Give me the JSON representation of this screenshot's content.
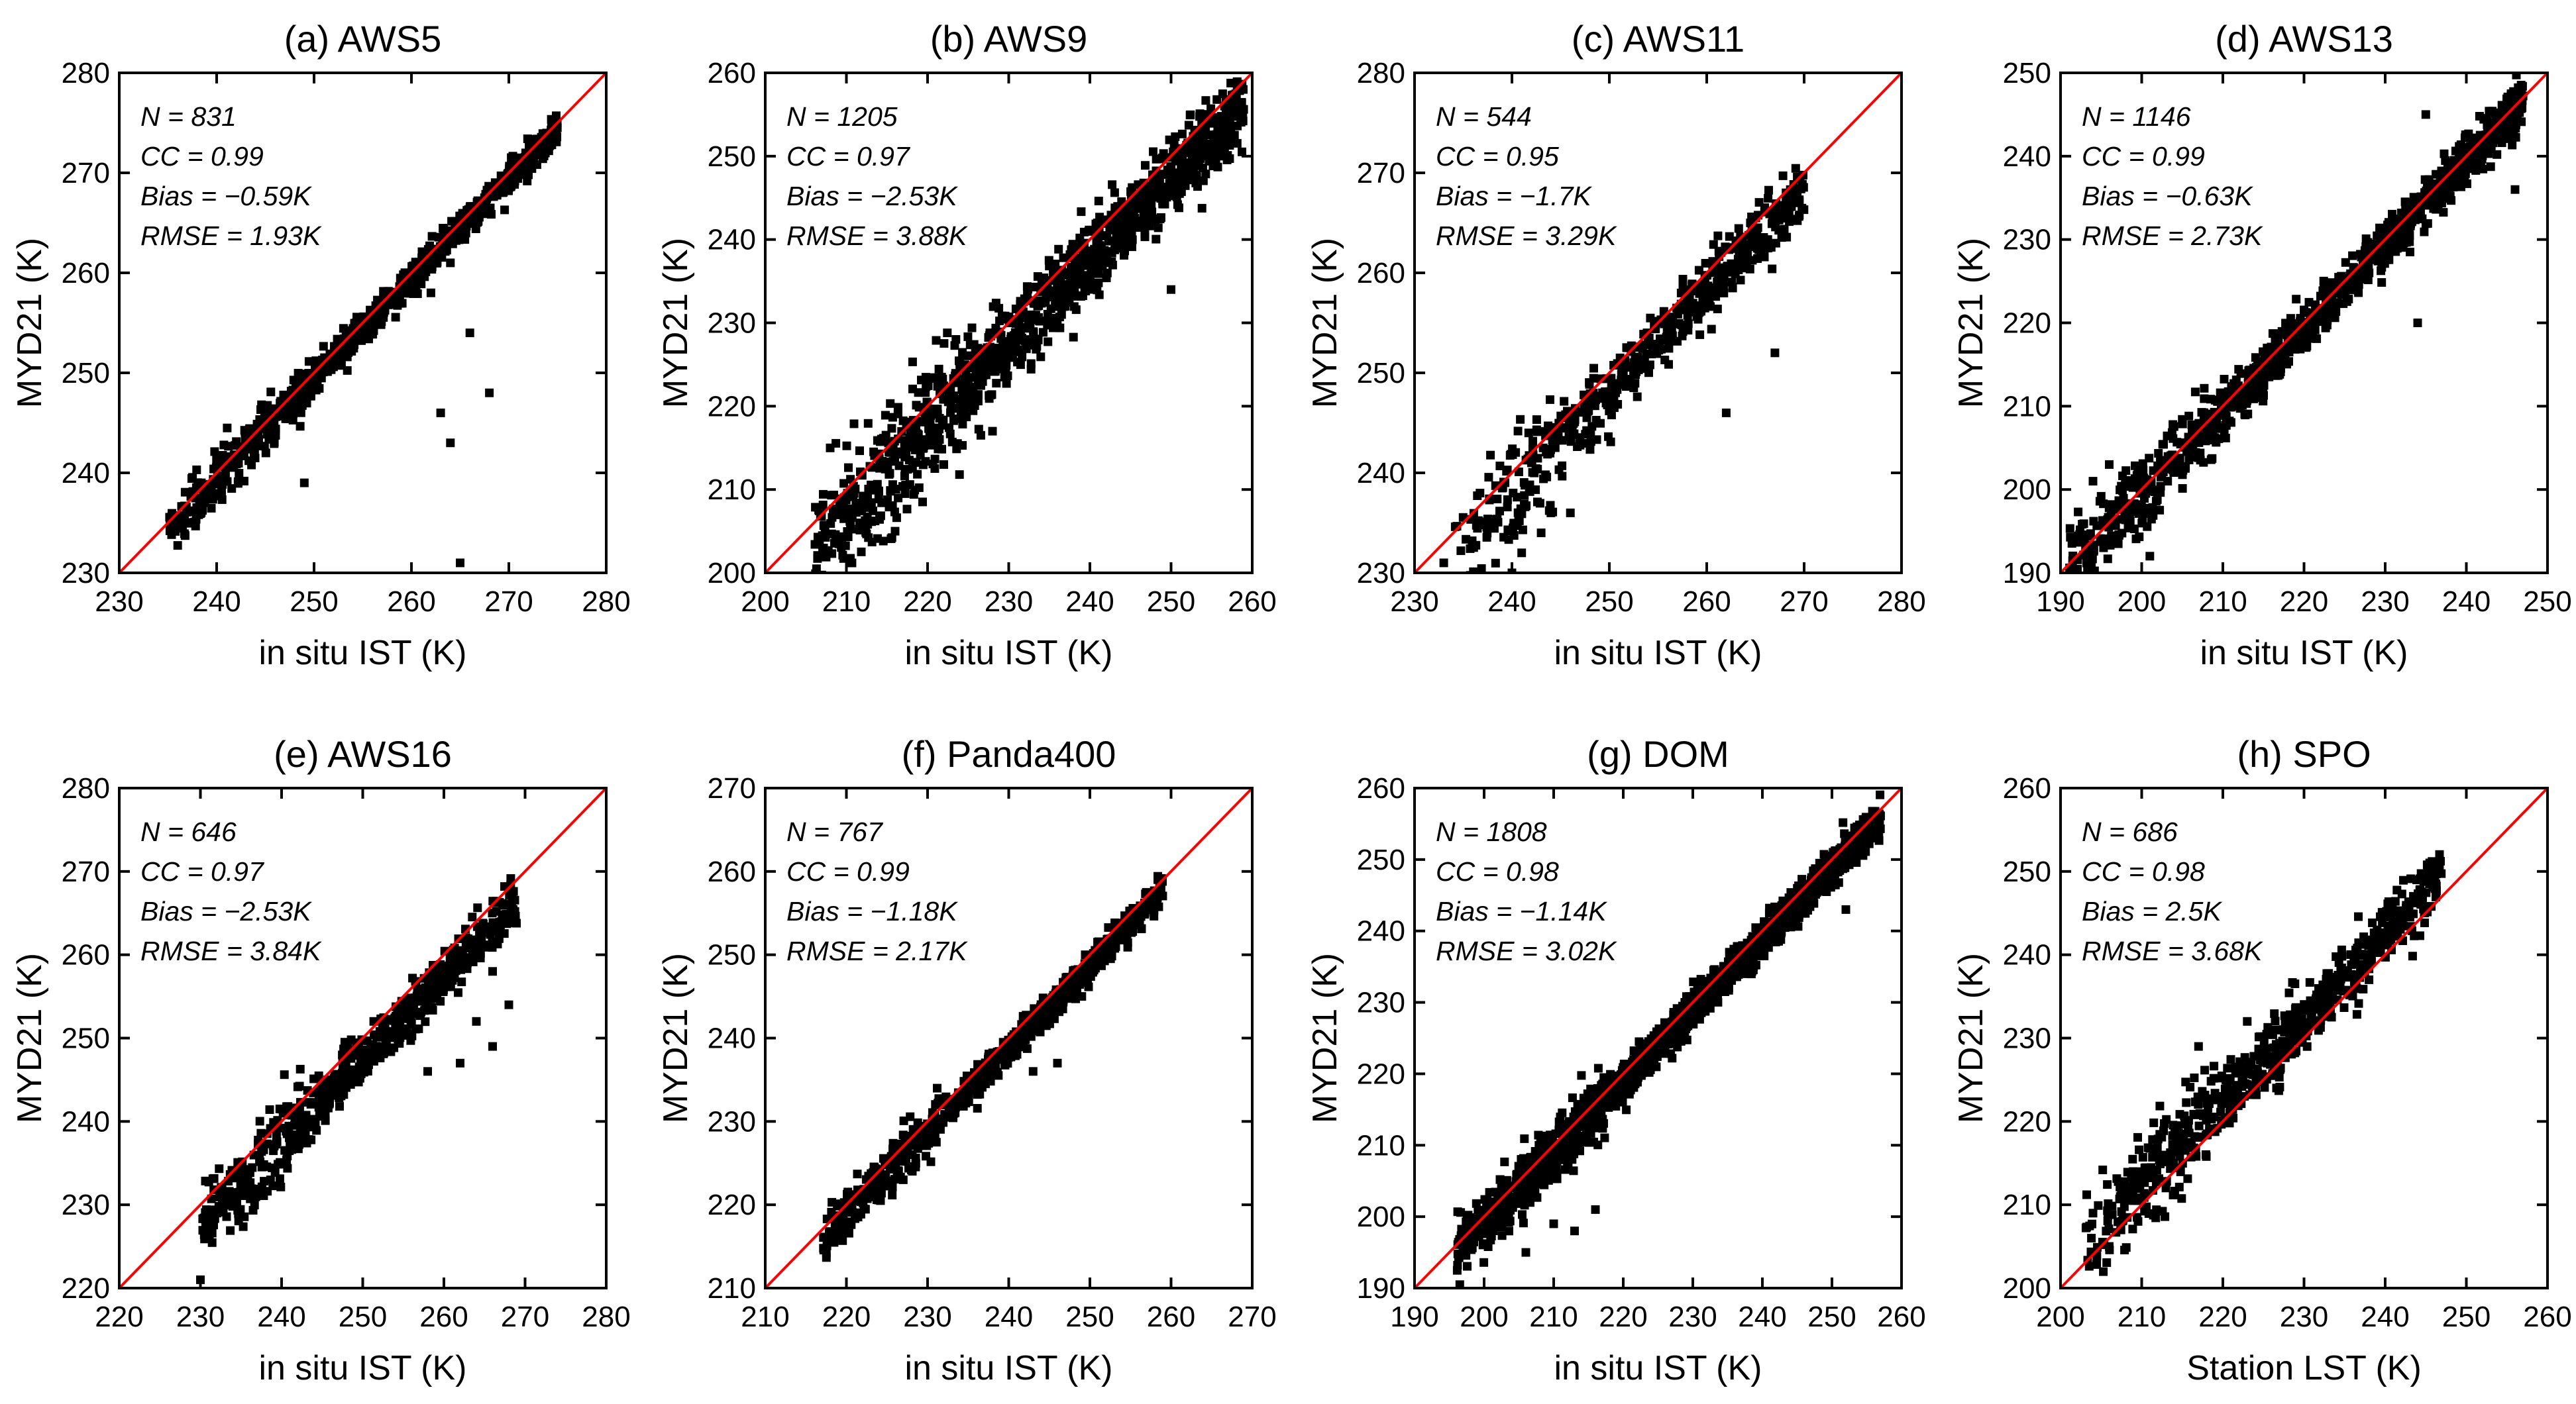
{
  "chart_data": [
    {
      "type": "scatter",
      "title": "(a) AWS5",
      "xlabel": "in situ IST (K)",
      "ylabel": "MYD21 (K)",
      "xlim": [
        230,
        280
      ],
      "ylim": [
        230,
        280
      ],
      "ticks": [
        230,
        240,
        250,
        260,
        270,
        280
      ],
      "stats": [
        "N = 831",
        "CC = 0.99",
        "Bias = −0.59K",
        "RMSE = 1.93K"
      ],
      "cloud": {
        "n": 831,
        "xmin": 235,
        "xmax": 275,
        "slope": 1.0,
        "offset": -0.59,
        "spread": 0.9
      },
      "outliers": [
        [
          263,
          246
        ],
        [
          264,
          243
        ],
        [
          266,
          254
        ],
        [
          268,
          248
        ],
        [
          264,
          261
        ],
        [
          262,
          258
        ],
        [
          249,
          239
        ],
        [
          265,
          231
        ]
      ]
    },
    {
      "type": "scatter",
      "title": "(b) AWS9",
      "xlabel": "in situ IST (K)",
      "ylabel": "MYD21 (K)",
      "xlim": [
        200,
        260
      ],
      "ylim": [
        200,
        260
      ],
      "ticks": [
        200,
        210,
        220,
        230,
        240,
        250,
        260
      ],
      "stats": [
        "N = 1205",
        "CC = 0.97",
        "Bias = −2.53K",
        "RMSE = 3.88K"
      ],
      "cloud": {
        "n": 1205,
        "xmin": 206,
        "xmax": 259,
        "slope": 1.0,
        "offset": -2.53,
        "spread": 2.8
      },
      "outliers": [
        [
          216,
          205
        ],
        [
          208,
          215
        ],
        [
          250,
          234
        ],
        [
          222,
          213
        ],
        [
          228,
          217
        ]
      ]
    },
    {
      "type": "scatter",
      "title": "(c) AWS11",
      "xlabel": "in situ IST (K)",
      "ylabel": "MYD21 (K)",
      "xlim": [
        230,
        280
      ],
      "ylim": [
        230,
        280
      ],
      "ticks": [
        230,
        240,
        250,
        260,
        270,
        280
      ],
      "stats": [
        "N = 544",
        "CC = 0.95",
        "Bias = −1.7K",
        "RMSE = 3.29K"
      ],
      "cloud": {
        "n": 544,
        "xmin": 234,
        "xmax": 270,
        "slope": 1.0,
        "offset": -1.7,
        "spread": 1.9
      },
      "outliers": [
        [
          241,
          232
        ],
        [
          243,
          234
        ],
        [
          244,
          236
        ],
        [
          246,
          236
        ],
        [
          262,
          246
        ],
        [
          267,
          252
        ],
        [
          233,
          231
        ],
        [
          240,
          230
        ]
      ]
    },
    {
      "type": "scatter",
      "title": "(d) AWS13",
      "xlabel": "in situ IST (K)",
      "ylabel": "MYD21 (K)",
      "xlim": [
        190,
        250
      ],
      "ylim": [
        190,
        250
      ],
      "ticks": [
        190,
        200,
        210,
        220,
        230,
        240,
        250
      ],
      "stats": [
        "N = 1146",
        "CC = 0.99",
        "Bias = −0.63K",
        "RMSE = 2.73K"
      ],
      "cloud": {
        "n": 1146,
        "xmin": 191,
        "xmax": 247,
        "slope": 1.0,
        "offset": -0.63,
        "spread": 1.6
      },
      "outliers": [
        [
          234,
          220
        ],
        [
          194,
          201
        ],
        [
          196,
          203
        ],
        [
          235,
          245
        ],
        [
          246,
          236
        ],
        [
          201,
          192
        ]
      ]
    },
    {
      "type": "scatter",
      "title": "(e) AWS16",
      "xlabel": "in situ IST (K)",
      "ylabel": "MYD21 (K)",
      "xlim": [
        220,
        280
      ],
      "ylim": [
        220,
        280
      ],
      "ticks": [
        220,
        230,
        240,
        250,
        260,
        270,
        280
      ],
      "stats": [
        "N = 646",
        "CC = 0.97",
        "Bias = −2.53K",
        "RMSE = 3.84K"
      ],
      "cloud": {
        "n": 646,
        "xmin": 230,
        "xmax": 269,
        "slope": 1.0,
        "offset": -2.53,
        "spread": 1.8
      },
      "outliers": [
        [
          230,
          221
        ],
        [
          258,
          246
        ],
        [
          262,
          247
        ],
        [
          266,
          249
        ],
        [
          268,
          254
        ],
        [
          264,
          252
        ],
        [
          266,
          258
        ]
      ]
    },
    {
      "type": "scatter",
      "title": "(f) Panda400",
      "xlabel": "in situ IST (K)",
      "ylabel": "MYD21 (K)",
      "xlim": [
        210,
        270
      ],
      "ylim": [
        210,
        270
      ],
      "ticks": [
        210,
        220,
        230,
        240,
        250,
        260,
        270
      ],
      "stats": [
        "N = 767",
        "CC = 0.99",
        "Bias = −1.18K",
        "RMSE = 2.17K"
      ],
      "cloud": {
        "n": 767,
        "xmin": 217,
        "xmax": 259,
        "slope": 1.0,
        "offset": -1.18,
        "spread": 1.1
      },
      "outliers": [
        [
          227,
          223
        ],
        [
          243,
          236
        ],
        [
          246,
          237
        ],
        [
          249,
          245
        ]
      ]
    },
    {
      "type": "scatter",
      "title": "(g) DOM",
      "xlabel": "in situ IST (K)",
      "ylabel": "MYD21 (K)",
      "xlim": [
        190,
        260
      ],
      "ylim": [
        190,
        260
      ],
      "ticks": [
        190,
        200,
        210,
        220,
        230,
        240,
        250,
        260
      ],
      "stats": [
        "N = 1808",
        "CC = 0.98",
        "Bias = −1.14K",
        "RMSE = 3.02K"
      ],
      "cloud": {
        "n": 1808,
        "xmin": 196,
        "xmax": 257,
        "slope": 1.0,
        "offset": -1.14,
        "spread": 1.4
      },
      "outliers": [
        [
          210,
          199
        ],
        [
          213,
          198
        ],
        [
          216,
          201
        ],
        [
          206,
          195
        ],
        [
          252,
          243
        ]
      ]
    },
    {
      "type": "scatter",
      "title": "(h) SPO",
      "xlabel": "Station LST (K)",
      "ylabel": "MYD21 (K)",
      "xlim": [
        200,
        260
      ],
      "ylim": [
        200,
        260
      ],
      "ticks": [
        200,
        210,
        220,
        230,
        240,
        250,
        260
      ],
      "stats": [
        "N = 686",
        "CC = 0.98",
        "Bias = 2.5K",
        "RMSE = 3.68K"
      ],
      "cloud": {
        "n": 686,
        "xmin": 203,
        "xmax": 247,
        "slope": 1.0,
        "offset": 2.5,
        "spread": 2.2
      },
      "outliers": [
        [
          206,
          205
        ],
        [
          204,
          209
        ],
        [
          217,
          229
        ],
        [
          223,
          232
        ],
        [
          228,
          232
        ]
      ]
    }
  ],
  "colors": {
    "marker": "#000000",
    "identity_line": "#ff0000",
    "axes": "#000000"
  }
}
